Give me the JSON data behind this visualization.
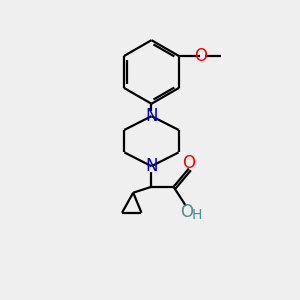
{
  "bg_color": "#efefef",
  "bond_color": "#000000",
  "N_color": "#0000cc",
  "O_color": "#ff0000",
  "OH_color": "#4a9090",
  "H_color": "#4a9090",
  "line_width": 1.6,
  "font_size": 12,
  "fig_size": [
    3.0,
    3.0
  ],
  "dpi": 100,
  "xlim": [
    0,
    10
  ],
  "ylim": [
    0,
    10
  ]
}
